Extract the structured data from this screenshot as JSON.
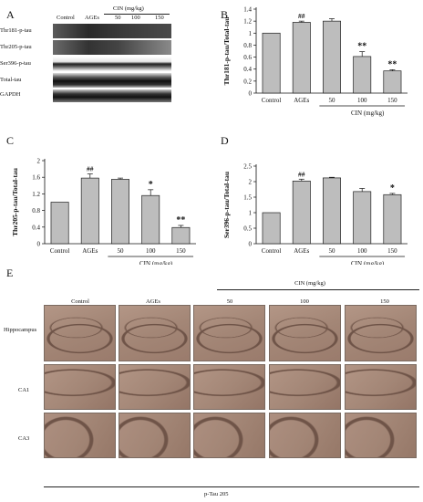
{
  "panels": {
    "A": "A",
    "B": "B",
    "C": "C",
    "D": "D",
    "E": "E"
  },
  "blot": {
    "group_header": "CIN (mg/kg)",
    "columns": [
      "Control",
      "AGEs",
      "50",
      "100",
      "150"
    ],
    "rows": [
      "Thr181-p-tau",
      "Thr205-p-tau",
      "Ser396-p-tau",
      "Total-tau",
      "GAPDH"
    ]
  },
  "chart_data": [
    {
      "type": "bar",
      "panel": "B",
      "categories": [
        "Control",
        "AGEs",
        "50",
        "100",
        "150"
      ],
      "values": [
        1.0,
        1.18,
        1.2,
        0.61,
        0.37
      ],
      "errors": [
        0.0,
        0.02,
        0.04,
        0.08,
        0.02
      ],
      "annotations": [
        "",
        "##",
        "",
        "**",
        "**"
      ],
      "ylabel": "Thr181-p-tau/Total-tau",
      "group_label": "CIN (mg/kg)",
      "ylim": [
        0,
        1.4
      ],
      "yticks": [
        "0",
        "0.2",
        "0.4",
        "0.6",
        "0.8",
        "1",
        "1.2",
        "1.4"
      ]
    },
    {
      "type": "bar",
      "panel": "C",
      "categories": [
        "Control",
        "AGEs",
        "50",
        "100",
        "150"
      ],
      "values": [
        1.0,
        1.58,
        1.55,
        1.16,
        0.39
      ],
      "errors": [
        0.0,
        0.1,
        0.03,
        0.14,
        0.05
      ],
      "annotations": [
        "",
        "##",
        "",
        "*",
        "**"
      ],
      "ylabel": "Thr205-p-tau/Total-tau",
      "group_label": "CIN (mg/kg)",
      "ylim": [
        0,
        2.0
      ],
      "yticks": [
        "0",
        "0.4",
        "0.8",
        "1.2",
        "1.6",
        "2"
      ]
    },
    {
      "type": "bar",
      "panel": "D",
      "categories": [
        "Control",
        "AGEs",
        "50",
        "100",
        "150"
      ],
      "values": [
        1.0,
        2.02,
        2.12,
        1.68,
        1.58
      ],
      "errors": [
        0.0,
        0.06,
        0.02,
        0.1,
        0.04
      ],
      "annotations": [
        "",
        "##",
        "",
        "",
        "*"
      ],
      "ylabel": "Ser396-p-tau/Total-tau",
      "group_label": "CIN (mg/kg)",
      "ylim": [
        0,
        2.5
      ],
      "yticks": [
        "0",
        "0.5",
        "1",
        "1.5",
        "2",
        "2.5"
      ]
    }
  ],
  "tissue": {
    "group_header": "CIN (mg/kg)",
    "columns": [
      "Control",
      "AGEs",
      "50",
      "100",
      "150"
    ],
    "rows": [
      "Hippocampus",
      "CA1",
      "CA3"
    ],
    "footer": "p-Tau 205"
  },
  "colors": {
    "bar": "#bdbdbd",
    "tissue_bg": "#a38676",
    "tissue_dark": "#6f5448"
  }
}
